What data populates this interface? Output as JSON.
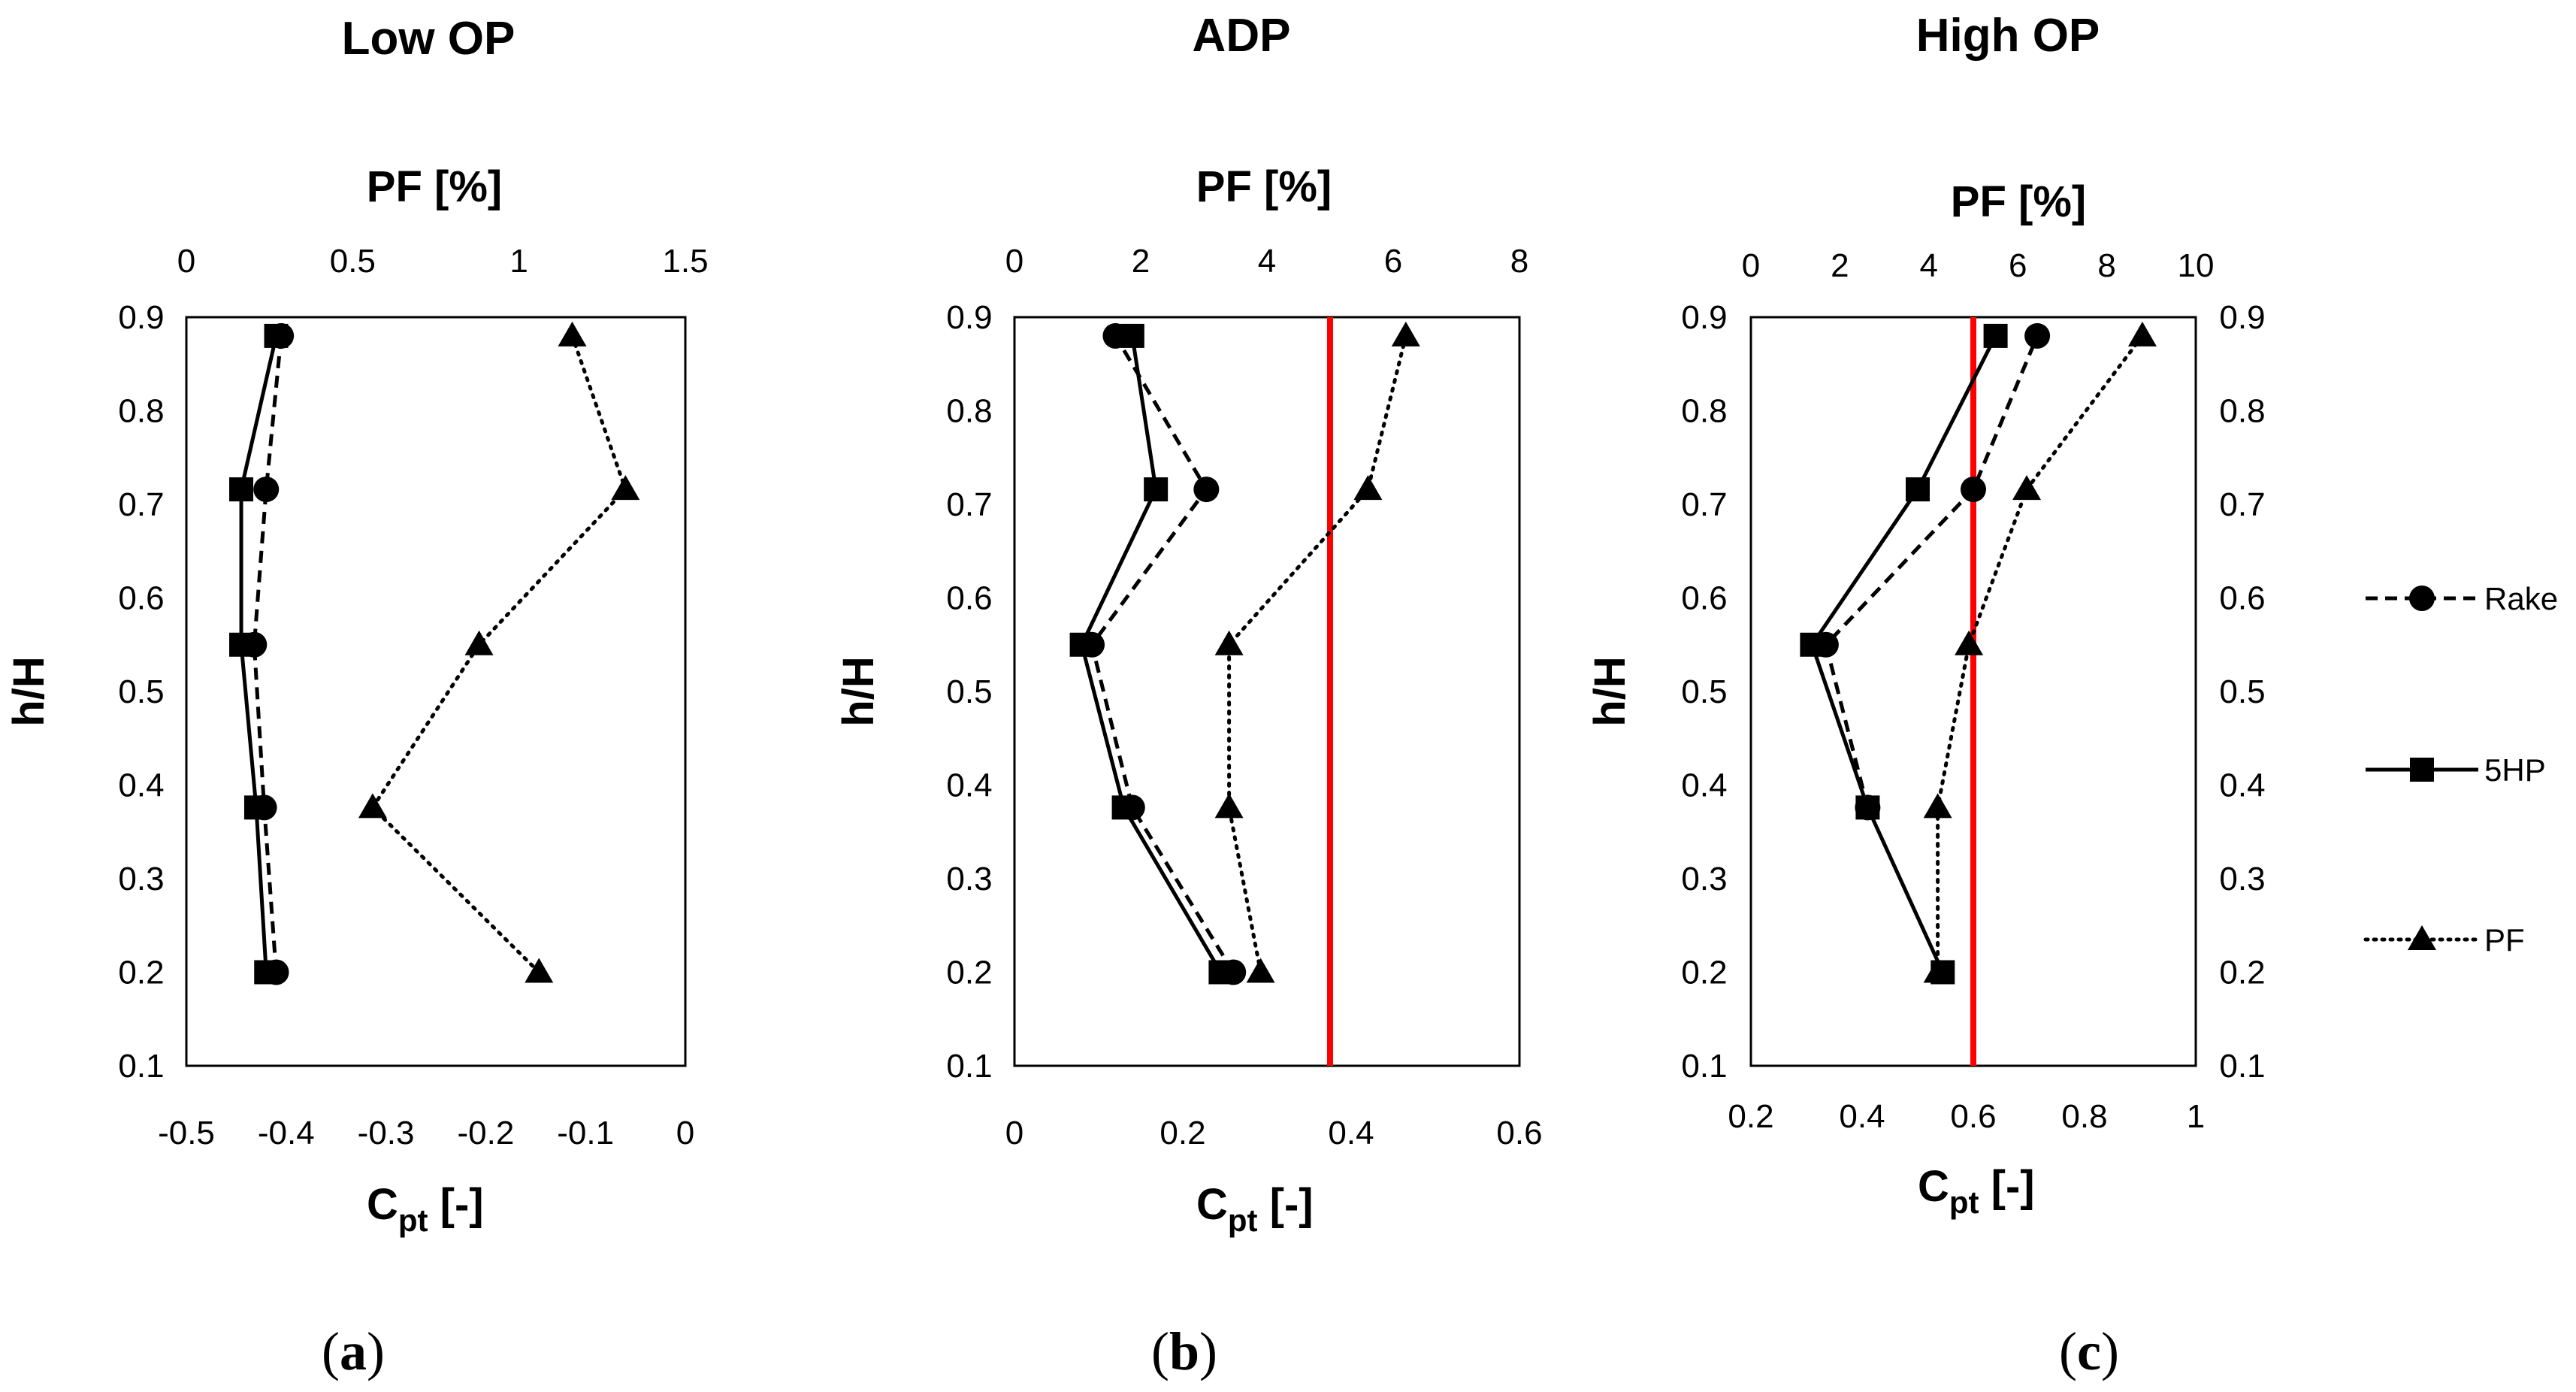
{
  "chart_data": [
    {
      "type": "line",
      "title": "Low OP",
      "panel_label": "a",
      "ylabel": "h/H",
      "xlabel_main": "C",
      "xlabel_sub": "pt",
      "xlabel_unit": " [-]",
      "x2label": "PF [%]",
      "ylim": [
        0.1,
        0.9
      ],
      "yticks": [
        "0.1",
        "0.2",
        "0.3",
        "0.4",
        "0.5",
        "0.6",
        "0.7",
        "0.8",
        "0.9"
      ],
      "xlim": [
        -0.5,
        0
      ],
      "xticks": [
        "-0.5",
        "-0.4",
        "-0.3",
        "-0.2",
        "-0.1",
        "0"
      ],
      "x2lim": [
        0,
        1.5
      ],
      "x2ticks": [
        "0",
        "0.5",
        "1",
        "1.5"
      ],
      "right_axis": false,
      "red_line": null,
      "series": [
        {
          "name": "Rake",
          "axis": "bottom",
          "marker": "circle",
          "style": "dashed",
          "x": [
            -0.41,
            -0.422,
            -0.432,
            -0.42,
            -0.405
          ],
          "y": [
            0.2,
            0.376,
            0.55,
            0.716,
            0.88
          ]
        },
        {
          "name": "5HP",
          "axis": "bottom",
          "marker": "square",
          "style": "solid",
          "x": [
            -0.42,
            -0.43,
            -0.445,
            -0.445,
            -0.41
          ],
          "y": [
            0.2,
            0.376,
            0.55,
            0.716,
            0.88
          ]
        },
        {
          "name": "PF",
          "axis": "top",
          "marker": "triangle",
          "style": "dotted",
          "x": [
            1.06,
            0.56,
            0.88,
            1.32,
            1.16
          ],
          "y": [
            0.2,
            0.376,
            0.55,
            0.716,
            0.88
          ]
        }
      ]
    },
    {
      "type": "line",
      "title": "ADP",
      "panel_label": "b",
      "ylabel": "h/H",
      "xlabel_main": "C",
      "xlabel_sub": "pt",
      "xlabel_unit": " [-]",
      "x2label": "PF [%]",
      "ylim": [
        0.1,
        0.9
      ],
      "yticks": [
        "0.1",
        "0.2",
        "0.3",
        "0.4",
        "0.5",
        "0.6",
        "0.7",
        "0.8",
        "0.9"
      ],
      "xlim": [
        0,
        0.6
      ],
      "xticks": [
        "0",
        "0.2",
        "0.4",
        "0.6"
      ],
      "x2lim": [
        0,
        8
      ],
      "x2ticks": [
        "0",
        "2",
        "4",
        "6",
        "8"
      ],
      "right_axis": false,
      "red_line": 5,
      "series": [
        {
          "name": "Rake",
          "axis": "bottom",
          "marker": "circle",
          "style": "dashed",
          "x": [
            0.26,
            0.14,
            0.092,
            0.228,
            0.12
          ],
          "y": [
            0.2,
            0.376,
            0.55,
            0.716,
            0.88
          ]
        },
        {
          "name": "5HP",
          "axis": "bottom",
          "marker": "square",
          "style": "solid",
          "x": [
            0.245,
            0.13,
            0.08,
            0.168,
            0.14
          ],
          "y": [
            0.2,
            0.376,
            0.55,
            0.716,
            0.88
          ]
        },
        {
          "name": "PF",
          "axis": "top",
          "marker": "triangle",
          "style": "dotted",
          "x": [
            3.9,
            3.4,
            3.4,
            5.6,
            6.2
          ],
          "y": [
            0.2,
            0.376,
            0.55,
            0.716,
            0.88
          ]
        }
      ]
    },
    {
      "type": "line",
      "title": "High OP",
      "panel_label": "c",
      "ylabel": "h/H",
      "xlabel_main": "C",
      "xlabel_sub": "pt",
      "xlabel_unit": " [-]",
      "x2label": "PF [%]",
      "ylim": [
        0.1,
        0.9
      ],
      "yticks": [
        "0.1",
        "0.2",
        "0.3",
        "0.4",
        "0.5",
        "0.6",
        "0.7",
        "0.8",
        "0.9"
      ],
      "xlim": [
        0.2,
        1
      ],
      "xticks": [
        "0.2",
        "0.4",
        "0.6",
        "0.8",
        "1"
      ],
      "x2lim": [
        0,
        10
      ],
      "x2ticks": [
        "0",
        "2",
        "4",
        "6",
        "8",
        "10"
      ],
      "right_axis": true,
      "red_line": 5,
      "series": [
        {
          "name": "Rake",
          "axis": "bottom",
          "marker": "circle",
          "style": "dashed",
          "x": [
            0.41,
            0.335,
            0.6,
            0.715
          ],
          "y": [
            0.376,
            0.55,
            0.716,
            0.88
          ]
        },
        {
          "name": "5HP",
          "axis": "bottom",
          "marker": "square",
          "style": "solid",
          "x": [
            0.545,
            0.41,
            0.31,
            0.5,
            0.64
          ],
          "y": [
            0.2,
            0.376,
            0.55,
            0.716,
            0.88
          ]
        },
        {
          "name": "PF",
          "axis": "top",
          "marker": "triangle",
          "style": "dotted",
          "x": [
            4.2,
            4.2,
            4.9,
            6.2,
            8.8
          ],
          "y": [
            0.2,
            0.376,
            0.55,
            0.716,
            0.88
          ]
        }
      ]
    }
  ],
  "legend": [
    {
      "label": "Rake",
      "marker": "circle",
      "style": "dashed"
    },
    {
      "label": "5HP",
      "marker": "square",
      "style": "solid"
    },
    {
      "label": "PF",
      "marker": "triangle",
      "style": "dotted"
    }
  ],
  "colors": {
    "series": "#000000",
    "red_line": "#ff0000",
    "frame": "#000000",
    "background": "#ffffff"
  }
}
